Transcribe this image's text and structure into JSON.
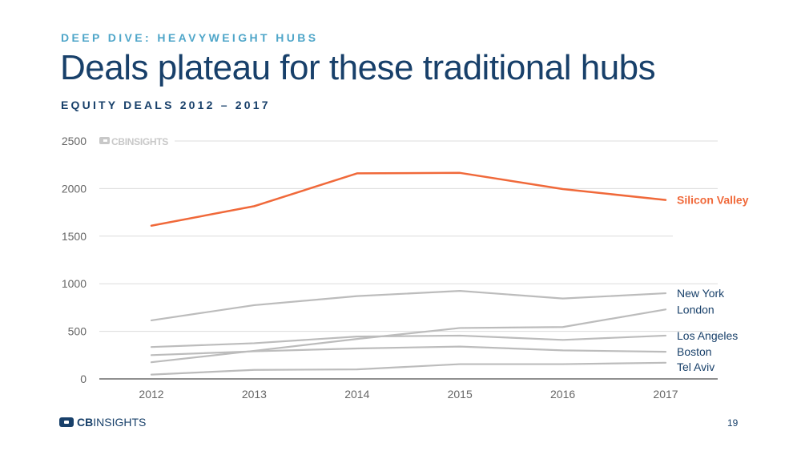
{
  "header": {
    "kicker": "DEEP DIVE: HEAVYWEIGHT HUBS",
    "title": "Deals plateau for these traditional hubs",
    "subtitle": "EQUITY DEALS 2012 – 2017"
  },
  "footer": {
    "brand_bold": "CB",
    "brand_rest": "INSIGHTS",
    "page_number": "19"
  },
  "chart_data": {
    "type": "line",
    "watermark": "CBINSIGHTS",
    "x": [
      "2012",
      "2013",
      "2014",
      "2015",
      "2016",
      "2017"
    ],
    "ylim": [
      0,
      2500
    ],
    "yticks": [
      0,
      500,
      1000,
      1500,
      2000,
      2500
    ],
    "grid": true,
    "series": [
      {
        "name": "Silicon Valley",
        "values": [
          1610,
          1815,
          2160,
          2165,
          1995,
          1880
        ],
        "color": "#f0693a",
        "highlight": true
      },
      {
        "name": "New York",
        "values": [
          615,
          775,
          870,
          925,
          845,
          900
        ],
        "color": "#bcbcbc"
      },
      {
        "name": "London",
        "values": [
          175,
          295,
          420,
          535,
          545,
          730
        ],
        "color": "#bcbcbc"
      },
      {
        "name": "Los Angeles",
        "values": [
          335,
          375,
          445,
          455,
          410,
          455
        ],
        "color": "#bcbcbc"
      },
      {
        "name": "Boston",
        "values": [
          250,
          290,
          320,
          340,
          300,
          285
        ],
        "color": "#bcbcbc"
      },
      {
        "name": "Tel Aviv",
        "values": [
          45,
          95,
          100,
          155,
          155,
          170
        ],
        "color": "#bcbcbc"
      }
    ]
  },
  "colors": {
    "navy": "#18406a",
    "accent_blue": "#4fa6c9",
    "highlight_orange": "#f0693a",
    "muted_line": "#bcbcbc"
  }
}
